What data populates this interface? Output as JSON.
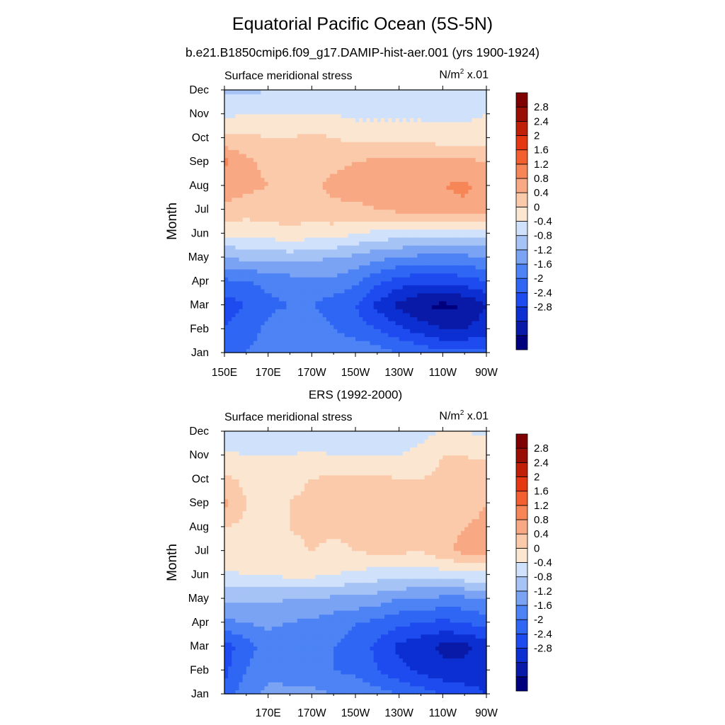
{
  "title": "Equatorial Pacific Ocean (5S-5N)",
  "subtitle": "b.e21.B1850cmip6.f09_g17.DAMIP-hist-aer.001 (yrs 1900-1924)",
  "colors": [
    "#00007f",
    "#0a1aa8",
    "#0c2fd2",
    "#1e4bf0",
    "#2f66f4",
    "#4d83f4",
    "#7aa3f4",
    "#a6c3f6",
    "#d0e2fb",
    "#fbe6d2",
    "#fbcaaa",
    "#f8a883",
    "#f68658",
    "#f35f2e",
    "#e53712",
    "#c01f08",
    "#9a0f04",
    "#7f0000"
  ],
  "colorbar_labels": [
    "2.8",
    "2.4",
    "2",
    "1.6",
    "1.2",
    "0.8",
    "0.4",
    "0",
    "-0.4",
    "-0.8",
    "-1.2",
    "-1.6",
    "-2",
    "-2.4",
    "-2.8"
  ],
  "chart_data": [
    {
      "type": "heatmap",
      "panel_title": "",
      "left_string": "Surface meridional stress",
      "right_string_base": "N/m",
      "right_string_sup": "2",
      "right_string_tail": " x.01",
      "ylabel": "Month",
      "x_ticks": [
        "150E",
        "170E",
        "170W",
        "150W",
        "130W",
        "110W",
        "90W"
      ],
      "y_ticks": [
        "Jan",
        "Feb",
        "Mar",
        "Apr",
        "May",
        "Jun",
        "Jul",
        "Aug",
        "Sep",
        "Oct",
        "Nov",
        "Dec"
      ],
      "xlim": [
        "150E",
        "90W"
      ],
      "levels": [
        -2.8,
        -2.4,
        -2.0,
        -1.6,
        -1.2,
        -0.8,
        -0.4,
        0,
        0.4,
        0.8,
        1.2,
        1.6,
        2.0,
        2.4,
        2.8
      ],
      "x": [
        "150E",
        "160E",
        "170E",
        "180",
        "170W",
        "160W",
        "150W",
        "140W",
        "130W",
        "120W",
        "110W",
        "100W",
        "90W"
      ],
      "months": [
        "Jan",
        "Feb",
        "Mar",
        "Apr",
        "May",
        "Jun",
        "Jul",
        "Aug",
        "Sep",
        "Oct",
        "Nov",
        "Dec"
      ],
      "z": [
        [
          -1.3,
          -1.2,
          -1.0,
          -0.9,
          -0.8,
          -0.8,
          -0.9,
          -1.0,
          -1.2,
          -1.3,
          -1.5,
          -1.5,
          -1.5
        ],
        [
          -1.6,
          -1.4,
          -1.1,
          -0.9,
          -1.0,
          -1.2,
          -1.4,
          -1.6,
          -1.9,
          -2.2,
          -2.4,
          -2.4,
          -2.2
        ],
        [
          -1.8,
          -1.6,
          -1.3,
          -1.2,
          -1.2,
          -1.4,
          -1.6,
          -2.1,
          -2.5,
          -2.8,
          -2.9,
          -2.8,
          -2.4
        ],
        [
          -1.3,
          -1.2,
          -1.1,
          -1.0,
          -0.9,
          -0.9,
          -1.1,
          -1.5,
          -1.8,
          -1.9,
          -1.9,
          -1.8,
          -1.6
        ],
        [
          -0.4,
          -0.3,
          -0.3,
          -0.2,
          -0.3,
          -0.4,
          -0.5,
          -0.7,
          -0.8,
          -0.9,
          -0.9,
          -0.9,
          -0.8
        ],
        [
          0.5,
          0.5,
          0.6,
          0.7,
          0.6,
          0.6,
          0.4,
          0.3,
          0.2,
          0.1,
          0.1,
          0.1,
          0.1
        ],
        [
          1.1,
          1.0,
          1.0,
          1.0,
          1.0,
          1.1,
          1.1,
          1.2,
          1.3,
          1.3,
          1.4,
          1.5,
          1.3
        ],
        [
          1.4,
          1.3,
          1.2,
          1.1,
          1.1,
          1.3,
          1.4,
          1.4,
          1.4,
          1.4,
          1.6,
          1.7,
          1.4
        ],
        [
          1.7,
          1.3,
          1.1,
          1.0,
          1.0,
          1.1,
          1.2,
          1.3,
          1.3,
          1.3,
          1.3,
          1.3,
          1.2
        ],
        [
          0.9,
          0.9,
          0.8,
          0.8,
          0.9,
          0.8,
          0.7,
          0.7,
          0.7,
          0.7,
          0.6,
          0.6,
          0.6
        ],
        [
          0.3,
          0.4,
          0.4,
          0.4,
          0.4,
          0.4,
          0.3,
          0.3,
          0.3,
          0.3,
          0.3,
          0.3,
          0.4
        ],
        [
          -0.1,
          -0.1,
          0.0,
          0.1,
          0.1,
          0.1,
          0.1,
          0.0,
          0.1,
          0.1,
          0.1,
          0.1,
          0.1
        ]
      ]
    },
    {
      "type": "heatmap",
      "panel_title": "ERS (1992-2000)",
      "left_string": "Surface meridional stress",
      "right_string_base": "N/m",
      "right_string_sup": "2",
      "right_string_tail": " x.01",
      "ylabel": "Month",
      "x_ticks": [
        "170E",
        "170W",
        "150W",
        "130W",
        "110W",
        "90W"
      ],
      "y_ticks": [
        "Jan",
        "Feb",
        "Mar",
        "Apr",
        "May",
        "Jun",
        "Jul",
        "Aug",
        "Sep",
        "Oct",
        "Nov",
        "Dec"
      ],
      "xlim": [
        "150E",
        "90W"
      ],
      "levels": [
        -2.8,
        -2.4,
        -2.0,
        -1.6,
        -1.2,
        -0.8,
        -0.4,
        0,
        0.4,
        0.8,
        1.2,
        1.6,
        2.0,
        2.4,
        2.8
      ],
      "x": [
        "150E",
        "160E",
        "170E",
        "180",
        "170W",
        "160W",
        "150W",
        "140W",
        "130W",
        "120W",
        "110W",
        "100W",
        "90W"
      ],
      "months": [
        "Jan",
        "Feb",
        "Mar",
        "Apr",
        "May",
        "Jun",
        "Jul",
        "Aug",
        "Sep",
        "Oct",
        "Nov",
        "Dec"
      ],
      "z": [
        [
          -1.5,
          -0.9,
          -0.7,
          -0.6,
          -0.7,
          -0.8,
          -0.9,
          -1.0,
          -1.2,
          -1.4,
          -1.6,
          -1.8,
          -2.0
        ],
        [
          -1.7,
          -1.2,
          -0.9,
          -1.1,
          -1.0,
          -1.2,
          -1.3,
          -1.6,
          -1.9,
          -2.1,
          -2.3,
          -2.3,
          -2.2
        ],
        [
          -1.8,
          -1.4,
          -1.0,
          -1.2,
          -1.1,
          -1.2,
          -1.4,
          -1.7,
          -2.1,
          -2.3,
          -2.5,
          -2.5,
          -2.2
        ],
        [
          -0.9,
          -0.8,
          -0.7,
          -0.8,
          -0.9,
          -1.0,
          -1.2,
          -1.3,
          -1.5,
          -1.6,
          -1.7,
          -1.6,
          -1.4
        ],
        [
          -0.3,
          -0.3,
          -0.3,
          -0.4,
          -0.4,
          -0.5,
          -0.5,
          -0.6,
          -0.8,
          -0.8,
          -0.9,
          -0.9,
          -0.8
        ],
        [
          0.3,
          0.4,
          0.4,
          0.5,
          0.5,
          0.4,
          0.3,
          0.2,
          0.2,
          0.1,
          0.2,
          0.3,
          0.3
        ],
        [
          0.8,
          0.7,
          0.7,
          0.7,
          0.8,
          0.7,
          0.8,
          0.9,
          0.9,
          0.8,
          1.1,
          1.3,
          1.4
        ],
        [
          0.8,
          0.7,
          0.7,
          0.8,
          0.9,
          0.9,
          0.9,
          0.9,
          0.9,
          0.9,
          1.1,
          1.2,
          1.3
        ],
        [
          1.3,
          0.8,
          0.8,
          0.8,
          0.9,
          1.0,
          0.9,
          0.9,
          0.9,
          0.9,
          0.9,
          1.0,
          1.2
        ],
        [
          0.9,
          0.7,
          0.7,
          0.7,
          0.8,
          0.9,
          0.9,
          0.9,
          0.8,
          0.8,
          0.9,
          1.0,
          1.1
        ],
        [
          0.5,
          0.4,
          0.4,
          0.4,
          0.5,
          0.4,
          0.4,
          0.4,
          0.4,
          0.5,
          0.8,
          0.8,
          0.7
        ],
        [
          0.1,
          0.1,
          0.0,
          0.0,
          0.0,
          0.1,
          0.1,
          0.2,
          0.2,
          0.3,
          0.4,
          0.4,
          0.3
        ]
      ]
    }
  ]
}
